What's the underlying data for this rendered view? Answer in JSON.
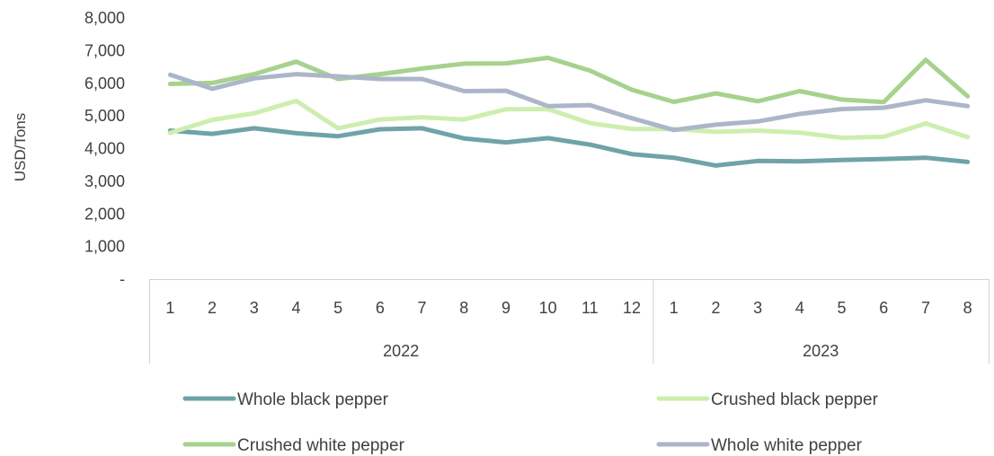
{
  "chart_data": {
    "type": "line",
    "title": "",
    "xlabel": "",
    "ylabel": "USD/Tons",
    "ylim": [
      0,
      8000
    ],
    "yticks": [
      "-",
      "1,000",
      "2,000",
      "3,000",
      "4,000",
      "5,000",
      "6,000",
      "7,000",
      "8,000"
    ],
    "categories": [
      "1",
      "2",
      "3",
      "4",
      "5",
      "6",
      "7",
      "8",
      "9",
      "10",
      "11",
      "12",
      "1",
      "2",
      "3",
      "4",
      "5",
      "6",
      "7",
      "8"
    ],
    "groups": [
      {
        "label": "2022",
        "start": 0,
        "end": 11
      },
      {
        "label": "2023",
        "start": 12,
        "end": 19
      }
    ],
    "grid": false,
    "legend": "bottom",
    "series": [
      {
        "name": "Whole black pepper",
        "color": "#6fa3a8",
        "values": [
          4550,
          4450,
          4620,
          4470,
          4380,
          4590,
          4620,
          4310,
          4190,
          4320,
          4120,
          3830,
          3720,
          3480,
          3620,
          3610,
          3650,
          3680,
          3720,
          3590
        ]
      },
      {
        "name": "Crushed black pepper",
        "color": "#cdeeaf",
        "values": [
          4480,
          4880,
          5080,
          5460,
          4620,
          4890,
          4960,
          4890,
          5200,
          5210,
          4780,
          4600,
          4600,
          4510,
          4550,
          4490,
          4330,
          4360,
          4770,
          4350
        ]
      },
      {
        "name": "Crushed white pepper",
        "color": "#a6d28e",
        "values": [
          5980,
          6010,
          6280,
          6660,
          6130,
          6280,
          6450,
          6600,
          6610,
          6780,
          6390,
          5800,
          5430,
          5690,
          5450,
          5760,
          5500,
          5420,
          6720,
          5600
        ]
      },
      {
        "name": "Whole white pepper",
        "color": "#abb6c9",
        "values": [
          6260,
          5830,
          6150,
          6280,
          6210,
          6130,
          6130,
          5760,
          5770,
          5300,
          5330,
          4930,
          4570,
          4730,
          4830,
          5060,
          5210,
          5250,
          5480,
          5300
        ]
      }
    ]
  }
}
